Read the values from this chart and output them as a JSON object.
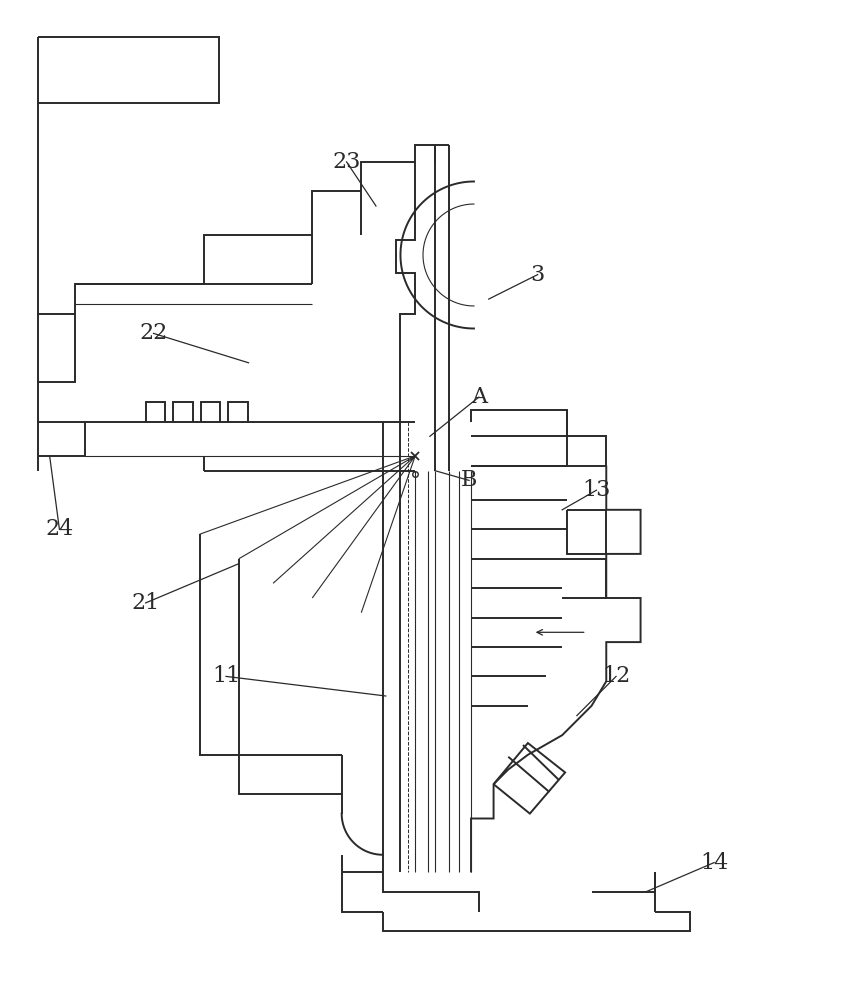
{
  "bg": "#ffffff",
  "lc": "#2a2a2a",
  "lw": 1.4,
  "tlw": 0.8,
  "fs": 14,
  "figsize": [
    8.47,
    10.0
  ],
  "dpi": 100
}
